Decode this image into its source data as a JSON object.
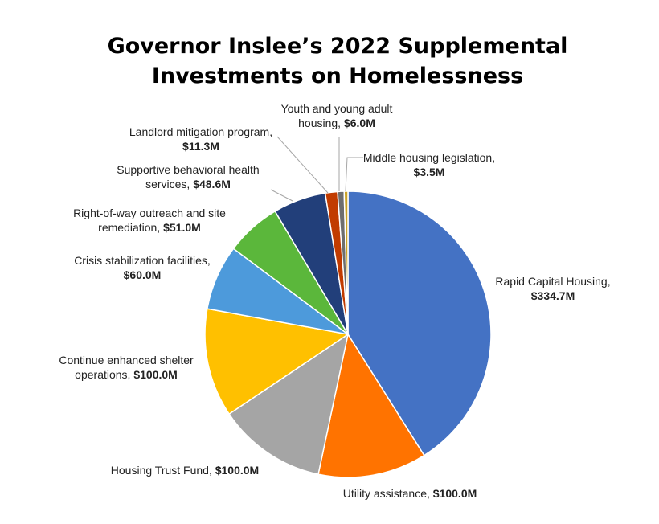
{
  "chart_data": {
    "type": "pie",
    "title_lines": [
      "Governor Inslee’s 2022 Supplemental",
      "Investments on Homelessness"
    ],
    "unit": "$M",
    "slices": [
      {
        "name": "Rapid Capital Housing",
        "label_lines": [
          "Rapid Capital Housing,"
        ],
        "value_label": "$334.7M",
        "value": 334.7,
        "color": "#4472C4"
      },
      {
        "name": "Utility assistance",
        "label_lines": [
          "Utility assistance, "
        ],
        "value_label": "$100.0M",
        "value": 100.0,
        "color": "#FF7300"
      },
      {
        "name": "Housing Trust Fund",
        "label_lines": [
          "Housing Trust Fund, "
        ],
        "value_label": "$100.0M",
        "value": 100.0,
        "color": "#A5A5A5"
      },
      {
        "name": "Continue enhanced shelter operations",
        "label_lines": [
          "Continue enhanced shelter",
          "operations, "
        ],
        "value_label": "$100.0M",
        "value": 100.0,
        "color": "#FFC000"
      },
      {
        "name": "Crisis stabilization facilities",
        "label_lines": [
          "Crisis stabilization facilities,"
        ],
        "value_label": "$60.0M",
        "value": 60.0,
        "color": "#4D9ADB"
      },
      {
        "name": "Right-of-way outreach and site remediation",
        "label_lines": [
          "Right-of-way outreach and site",
          "remediation, "
        ],
        "value_label": "$51.0M",
        "value": 51.0,
        "color": "#5BB73B"
      },
      {
        "name": "Supportive behavioral health services",
        "label_lines": [
          "Supportive behavioral health",
          "services, "
        ],
        "value_label": "$48.6M",
        "value": 48.6,
        "color": "#223F7A"
      },
      {
        "name": "Landlord mitigation program",
        "label_lines": [
          "Landlord mitigation program,"
        ],
        "value_label": "$11.3M",
        "value": 11.3,
        "color": "#C13B00"
      },
      {
        "name": "Youth and young adult housing",
        "label_lines": [
          "Youth and young adult",
          "housing, "
        ],
        "value_label": "$6.0M",
        "value": 6.0,
        "color": "#6E6E6E"
      },
      {
        "name": "Middle housing legislation",
        "label_lines": [
          "Middle housing legislation,"
        ],
        "value_label": "$3.5M",
        "value": 3.5,
        "color": "#C9A227"
      }
    ],
    "legend": "none",
    "data_labels": "outside with leader lines"
  }
}
